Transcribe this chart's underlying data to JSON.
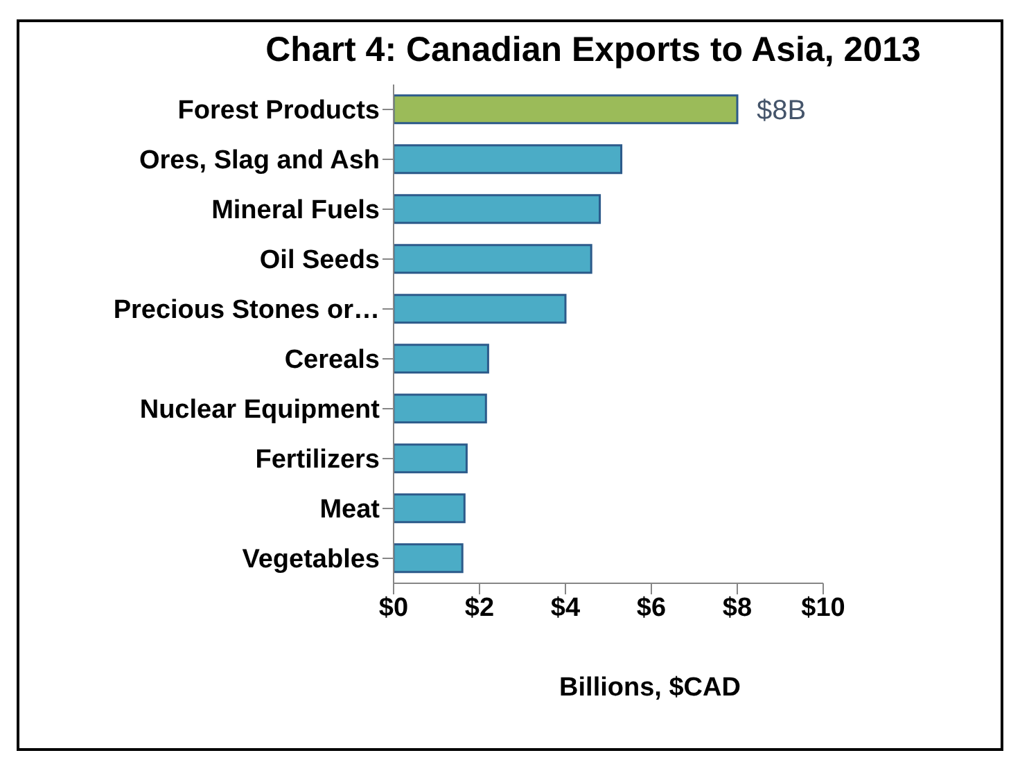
{
  "chart_data": {
    "type": "bar",
    "orientation": "horizontal",
    "title": "Chart 4: Canadian Exports to Asia, 2013",
    "xlabel": "Billions, $CAD",
    "categories": [
      "Forest Products",
      "Ores, Slag and Ash",
      "Mineral Fuels",
      "Oil Seeds",
      "Precious Stones or…",
      "Cereals",
      "Nuclear Equipment",
      "Fertilizers",
      "Meat",
      "Vegetables"
    ],
    "values": [
      8.0,
      5.3,
      4.8,
      4.6,
      4.0,
      2.2,
      2.15,
      1.7,
      1.65,
      1.6
    ],
    "colors": [
      "#9bbb59",
      "#4bacc6",
      "#4bacc6",
      "#4bacc6",
      "#4bacc6",
      "#4bacc6",
      "#4bacc6",
      "#4bacc6",
      "#4bacc6",
      "#4bacc6"
    ],
    "value_labels": [
      "$8B",
      null,
      null,
      null,
      null,
      null,
      null,
      null,
      null,
      null
    ],
    "xlim": [
      0,
      10
    ],
    "xticks": [
      {
        "value": 0,
        "label": "$0"
      },
      {
        "value": 2,
        "label": "$2"
      },
      {
        "value": 4,
        "label": "$4"
      },
      {
        "value": 6,
        "label": "$6"
      },
      {
        "value": 8,
        "label": "$8"
      },
      {
        "value": 10,
        "label": "$10"
      }
    ],
    "grid": false
  }
}
